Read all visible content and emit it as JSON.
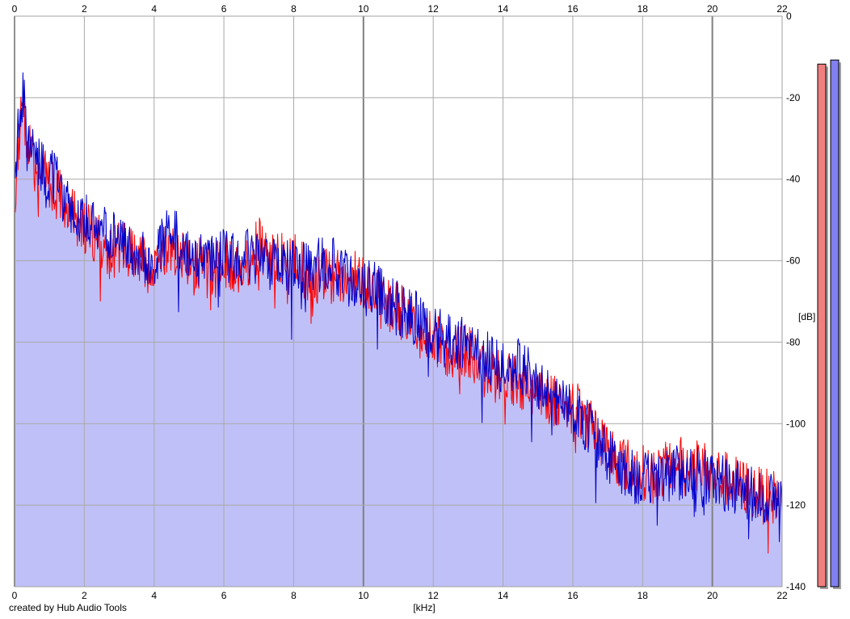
{
  "credit": "created by Hub Audio Tools",
  "chart_data": {
    "type": "area",
    "title": "",
    "xlabel": "[kHz]",
    "ylabel": "[dB]",
    "xlim": [
      0,
      22
    ],
    "ylim": [
      -140,
      0
    ],
    "xticks": [
      0,
      2,
      4,
      6,
      8,
      10,
      12,
      14,
      16,
      18,
      20,
      22
    ],
    "xtick_labels": [
      "0",
      "2",
      "4",
      "6",
      "8",
      "10",
      "12",
      "14",
      "16",
      "18",
      "20",
      "22"
    ],
    "yticks": [
      0,
      -20,
      -40,
      -60,
      -80,
      -100,
      -120,
      -140
    ],
    "ytick_labels": [
      "0",
      "-20",
      "-40",
      "-60",
      "-80",
      "-100",
      "-120",
      "-140"
    ],
    "grid": true,
    "fill_color": "#c0c0f8",
    "series": [
      {
        "color": "#ff0000",
        "x": [
          0,
          0.15,
          0.25,
          0.35,
          0.5,
          0.7,
          0.9,
          1.1,
          1.3,
          1.5,
          1.8,
          2.1,
          2.4,
          2.7,
          3.0,
          3.3,
          3.6,
          3.9,
          4.2,
          4.5,
          4.8,
          5.1,
          5.4,
          5.7,
          6.0,
          6.5,
          7.0,
          7.5,
          8.0,
          8.5,
          9.0,
          9.5,
          10.0,
          10.5,
          11.0,
          11.5,
          12.0,
          12.5,
          13.0,
          13.5,
          14.0,
          14.5,
          15.0,
          15.5,
          16.0,
          16.5,
          17.0,
          17.5,
          18.0,
          18.5,
          19.0,
          19.5,
          20.0,
          20.5,
          21.0,
          21.5,
          22.0
        ],
        "y": [
          -45,
          -28,
          -22,
          -30,
          -36,
          -38,
          -40,
          -42,
          -44,
          -48,
          -50,
          -52,
          -55,
          -58,
          -57,
          -58,
          -60,
          -62,
          -59,
          -56,
          -58,
          -62,
          -60,
          -63,
          -60,
          -62,
          -56,
          -60,
          -60,
          -64,
          -64,
          -64,
          -64,
          -70,
          -72,
          -75,
          -80,
          -82,
          -82,
          -88,
          -88,
          -90,
          -92,
          -94,
          -96,
          -100,
          -106,
          -110,
          -112,
          -112,
          -110,
          -110,
          -112,
          -114,
          -116,
          -118,
          -118
        ]
      },
      {
        "color": "#0000cc",
        "x": [
          0,
          0.15,
          0.25,
          0.35,
          0.5,
          0.7,
          0.9,
          1.1,
          1.3,
          1.5,
          1.8,
          2.1,
          2.4,
          2.7,
          3.0,
          3.3,
          3.6,
          3.9,
          4.2,
          4.5,
          4.8,
          5.1,
          5.4,
          5.7,
          6.0,
          6.5,
          7.0,
          7.5,
          8.0,
          8.5,
          9.0,
          9.5,
          10.0,
          10.5,
          11.0,
          11.5,
          12.0,
          12.5,
          13.0,
          13.5,
          14.0,
          14.5,
          15.0,
          15.5,
          16.0,
          16.5,
          17.0,
          17.5,
          18.0,
          18.5,
          19.0,
          19.5,
          20.0,
          20.5,
          21.0,
          21.5,
          22.0
        ],
        "y": [
          -40,
          -24,
          -18,
          -28,
          -34,
          -36,
          -38,
          -40,
          -42,
          -46,
          -48,
          -50,
          -52,
          -55,
          -55,
          -57,
          -58,
          -60,
          -57,
          -52,
          -56,
          -58,
          -59,
          -60,
          -58,
          -60,
          -58,
          -60,
          -62,
          -62,
          -60,
          -64,
          -66,
          -68,
          -72,
          -74,
          -78,
          -80,
          -80,
          -84,
          -86,
          -86,
          -90,
          -94,
          -98,
          -101,
          -108,
          -112,
          -114,
          -113,
          -112,
          -112,
          -114,
          -115,
          -117,
          -118,
          -119
        ]
      }
    ],
    "level_meters": [
      {
        "color": "#f08080",
        "level_db": -7
      },
      {
        "color": "#8080f0",
        "level_db": -6
      }
    ]
  }
}
